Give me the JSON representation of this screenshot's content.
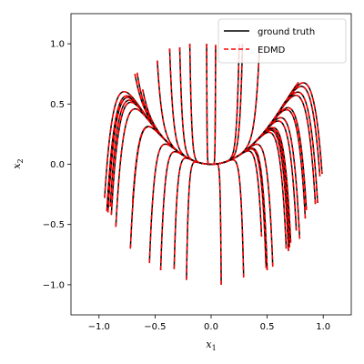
{
  "chart_data": {
    "type": "line",
    "title": "",
    "xlabel": "x",
    "xlabel_sub": "1",
    "ylabel": "x",
    "ylabel_sub": "2",
    "xlim": [
      -1.25,
      1.25
    ],
    "ylim": [
      -1.25,
      1.25
    ],
    "xticks": [
      -1.0,
      -0.5,
      0.0,
      0.5,
      1.0
    ],
    "xtick_labels": [
      "−1.0",
      "−0.5",
      "0.0",
      "0.5",
      "1.0"
    ],
    "yticks": [
      -1.0,
      -0.5,
      0.0,
      0.5,
      1.0
    ],
    "ytick_labels": [
      "−1.0",
      "−0.5",
      "0.0",
      "0.5",
      "1.0"
    ],
    "grid": false,
    "legend_position": "top-right",
    "series": [
      {
        "name": "ground truth",
        "color": "#000000",
        "style": "solid"
      },
      {
        "name": "EDMD",
        "color": "#ff0000",
        "style": "dashed"
      }
    ],
    "trajectories": [
      {
        "x0": -0.95,
        "y0": -0.28
      },
      {
        "x0": -0.93,
        "y0": -0.39
      },
      {
        "x0": -0.92,
        "y0": -0.4
      },
      {
        "x0": -0.9,
        "y0": -0.35
      },
      {
        "x0": -0.89,
        "y0": -0.42
      },
      {
        "x0": -0.85,
        "y0": -0.52
      },
      {
        "x0": -0.72,
        "y0": -0.7
      },
      {
        "x0": -0.7,
        "y0": -0.32
      },
      {
        "x0": -0.68,
        "y0": 0.75
      },
      {
        "x0": -0.66,
        "y0": 0.76
      },
      {
        "x0": -0.61,
        "y0": 0.62
      },
      {
        "x0": -0.55,
        "y0": -0.82
      },
      {
        "x0": -0.48,
        "y0": 0.86
      },
      {
        "x0": -0.45,
        "y0": -0.88
      },
      {
        "x0": -0.37,
        "y0": 0.96
      },
      {
        "x0": -0.33,
        "y0": -0.87
      },
      {
        "x0": -0.28,
        "y0": 0.97
      },
      {
        "x0": -0.22,
        "y0": -0.96
      },
      {
        "x0": -0.19,
        "y0": 1.0
      },
      {
        "x0": -0.04,
        "y0": 1.0
      },
      {
        "x0": 0.04,
        "y0": 0.99
      },
      {
        "x0": 0.09,
        "y0": -1.0
      },
      {
        "x0": 0.25,
        "y0": 1.0
      },
      {
        "x0": 0.28,
        "y0": 1.0
      },
      {
        "x0": 0.29,
        "y0": -0.94
      },
      {
        "x0": 0.43,
        "y0": 0.95
      },
      {
        "x0": 0.45,
        "y0": -0.6
      },
      {
        "x0": 0.49,
        "y0": -0.86
      },
      {
        "x0": 0.5,
        "y0": -0.88
      },
      {
        "x0": 0.55,
        "y0": -0.85
      },
      {
        "x0": 0.63,
        "y0": 0.46
      },
      {
        "x0": 0.66,
        "y0": 0.52
      },
      {
        "x0": 0.67,
        "y0": -0.7
      },
      {
        "x0": 0.69,
        "y0": -0.72
      },
      {
        "x0": 0.7,
        "y0": -0.69
      },
      {
        "x0": 0.71,
        "y0": -0.65
      },
      {
        "x0": 0.74,
        "y0": 0.6
      },
      {
        "x0": 0.76,
        "y0": -0.55
      },
      {
        "x0": 0.78,
        "y0": 0.68
      },
      {
        "x0": 0.79,
        "y0": -0.62
      },
      {
        "x0": 0.84,
        "y0": -0.45
      },
      {
        "x0": 0.85,
        "y0": -0.38
      },
      {
        "x0": 0.93,
        "y0": -0.33
      },
      {
        "x0": 0.95,
        "y0": -0.32
      },
      {
        "x0": 0.97,
        "y0": -0.1
      },
      {
        "x0": 0.99,
        "y0": -0.08
      }
    ]
  }
}
